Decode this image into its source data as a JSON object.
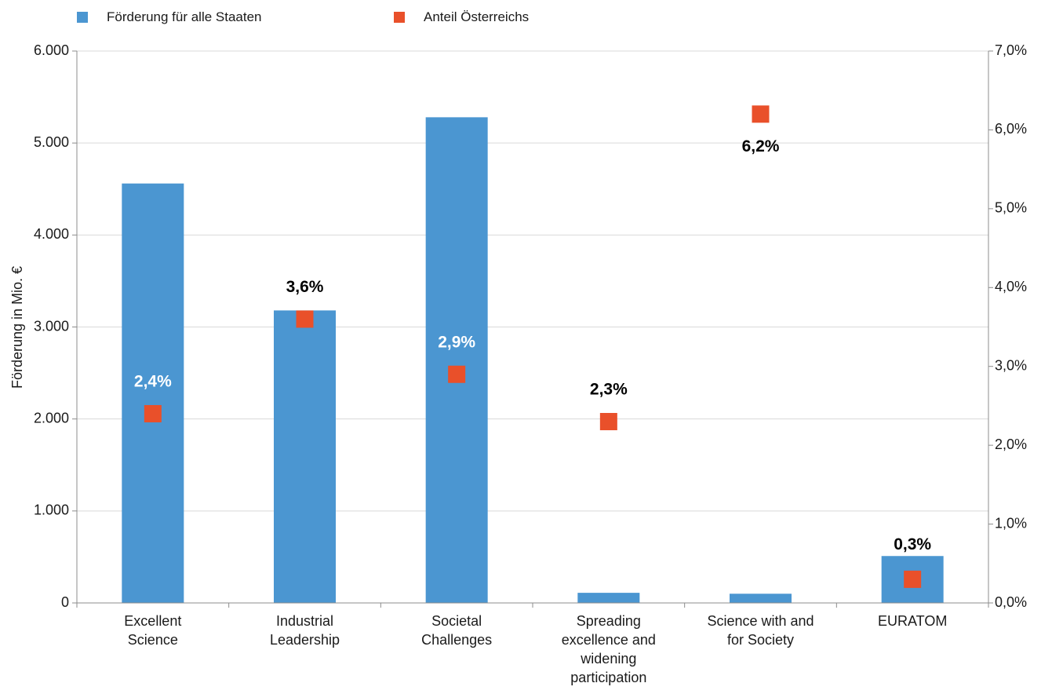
{
  "chart_data": {
    "type": "bar",
    "categories": [
      [
        "Excellent",
        "Science"
      ],
      [
        "Industrial",
        "Leadership"
      ],
      [
        "Societal",
        "Challenges"
      ],
      [
        "Spreading",
        "excellence and",
        "widening",
        "participation"
      ],
      [
        "Science with and",
        "for Society"
      ],
      [
        "EURATOM"
      ]
    ],
    "ylabel": "Förderung in Mio. €",
    "ylim": [
      0,
      6000
    ],
    "y2lim": [
      0,
      7
    ],
    "yticks": [
      "0",
      "1.000",
      "2.000",
      "3.000",
      "4.000",
      "5.000",
      "6.000"
    ],
    "y2ticks": [
      "0,0%",
      "1,0%",
      "2,0%",
      "3,0%",
      "4,0%",
      "5,0%",
      "6,0%",
      "7,0%"
    ],
    "grid": true,
    "legend_position": "top-left",
    "series": [
      {
        "name": "Förderung für alle Staaten",
        "type": "bar",
        "axis": "left",
        "color": "#4b96d1",
        "values": [
          4560,
          3180,
          5280,
          110,
          100,
          510
        ]
      },
      {
        "name": "Anteil Österreichs",
        "type": "scatter",
        "axis": "right",
        "color": "#e9502a",
        "values": [
          2.4,
          3.6,
          2.9,
          2.3,
          6.2,
          0.3
        ],
        "labels": [
          "2,4%",
          "3,6%",
          "2,9%",
          "2,3%",
          "6,2%",
          "0,3%"
        ]
      }
    ]
  }
}
